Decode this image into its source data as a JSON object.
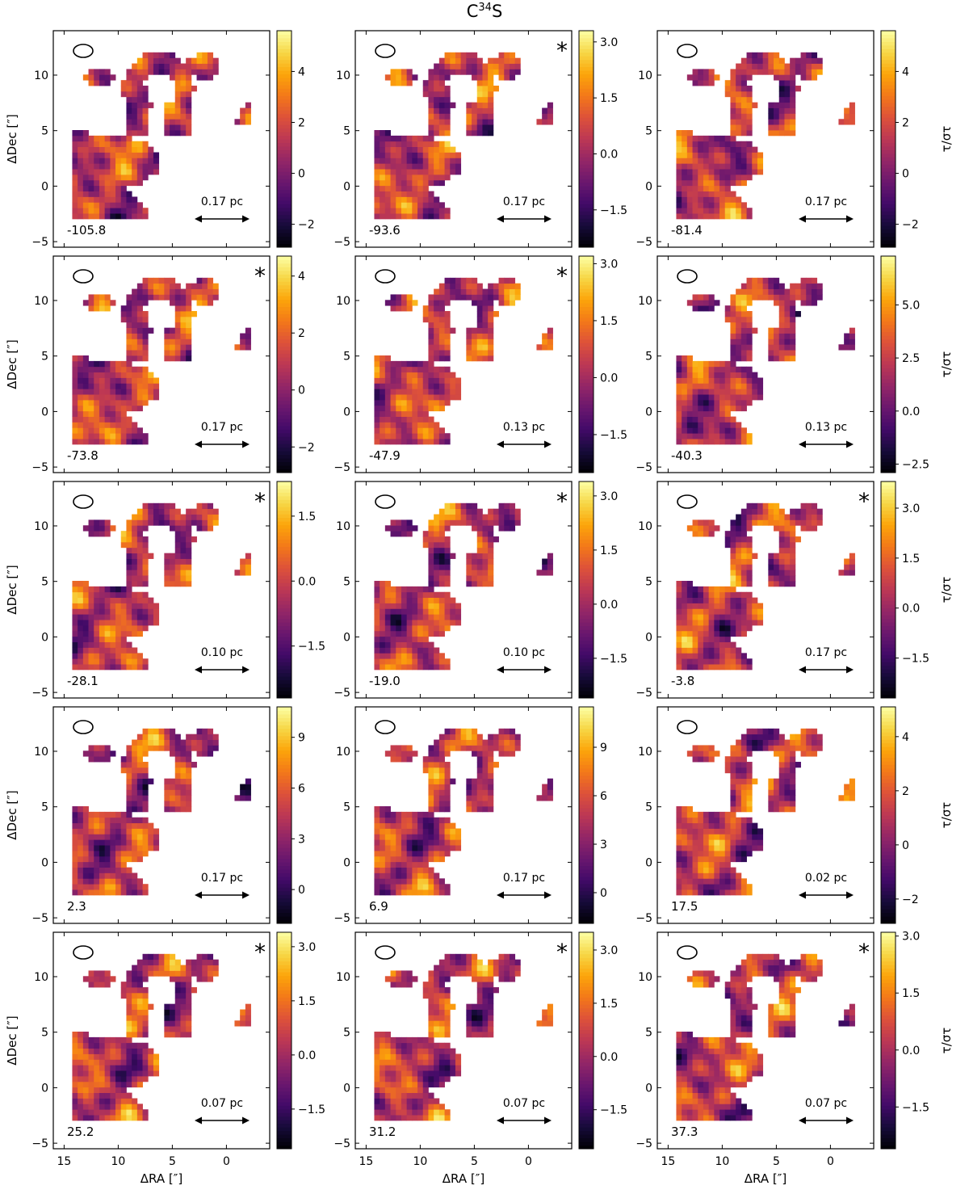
{
  "figure": {
    "title_base": "C",
    "title_sup": "34",
    "title_rest": "S",
    "xlabel": "ΔRA [″]",
    "ylabel": "ΔDec [″]",
    "cbar_label": "τ/στ",
    "colormap": "inferno",
    "missing_value_color": "#ffffff"
  },
  "chart_data": {
    "type": "heatmap",
    "title": "C34S",
    "xlabel": "ΔRA [″]",
    "ylabel": "ΔDec [″]",
    "xlim": [
      16,
      -4
    ],
    "ylim": [
      -5.5,
      14
    ],
    "xticks": [
      15,
      10,
      5,
      0
    ],
    "yticks": [
      -5,
      0,
      5,
      10
    ],
    "grid": false,
    "panels": [
      {
        "velocity": "-105.8",
        "scale": "0.17 pc",
        "asterisk": false,
        "clim": [
          -2.9,
          5.6
        ],
        "cbar_ticks": [
          -2,
          0,
          2,
          4
        ],
        "seed": 11
      },
      {
        "velocity": "-93.6",
        "scale": "0.17 pc",
        "asterisk": true,
        "clim": [
          -2.5,
          3.3
        ],
        "cbar_ticks": [
          -1.5,
          0.0,
          1.5,
          3.0
        ],
        "seed": 23
      },
      {
        "velocity": "-81.4",
        "scale": "0.17 pc",
        "asterisk": false,
        "clim": [
          -2.9,
          5.6
        ],
        "cbar_ticks": [
          -2,
          0,
          2,
          4
        ],
        "seed": 37
      },
      {
        "velocity": "-73.8",
        "scale": "0.17 pc",
        "asterisk": true,
        "clim": [
          -2.9,
          4.7
        ],
        "cbar_ticks": [
          -2,
          0,
          2,
          4
        ],
        "seed": 41
      },
      {
        "velocity": "-47.9",
        "scale": "0.13 pc",
        "asterisk": true,
        "clim": [
          -2.5,
          3.2
        ],
        "cbar_ticks": [
          -1.5,
          0.0,
          1.5,
          3.0
        ],
        "seed": 53
      },
      {
        "velocity": "-40.3",
        "scale": "0.13 pc",
        "asterisk": false,
        "clim": [
          -2.9,
          7.3
        ],
        "cbar_ticks": [
          -2.5,
          0.0,
          2.5,
          5.0
        ],
        "seed": 67
      },
      {
        "velocity": "-28.1",
        "scale": "0.10 pc",
        "asterisk": true,
        "clim": [
          -2.7,
          2.3
        ],
        "cbar_ticks": [
          -1.5,
          0.0,
          1.5
        ],
        "seed": 71
      },
      {
        "velocity": "-19.0",
        "scale": "0.10 pc",
        "asterisk": true,
        "clim": [
          -2.6,
          3.4
        ],
        "cbar_ticks": [
          -1.5,
          0.0,
          1.5,
          3.0
        ],
        "seed": 83
      },
      {
        "velocity": "-3.8",
        "scale": "0.17 pc",
        "asterisk": true,
        "clim": [
          -2.7,
          3.8
        ],
        "cbar_ticks": [
          -1.5,
          0.0,
          1.5,
          3.0
        ],
        "seed": 97
      },
      {
        "velocity": "2.3",
        "scale": "0.17 pc",
        "asterisk": false,
        "clim": [
          -2.0,
          10.8
        ],
        "cbar_ticks": [
          0,
          3,
          6,
          9
        ],
        "seed": 101
      },
      {
        "velocity": "6.9",
        "scale": "0.17 pc",
        "asterisk": false,
        "clim": [
          -1.9,
          11.5
        ],
        "cbar_ticks": [
          0,
          3,
          6,
          9
        ],
        "seed": 113
      },
      {
        "velocity": "17.5",
        "scale": "0.02 pc",
        "asterisk": false,
        "clim": [
          -2.9,
          5.1
        ],
        "cbar_ticks": [
          -2,
          0,
          2,
          4
        ],
        "seed": 127
      },
      {
        "velocity": "25.2",
        "scale": "0.07 pc",
        "asterisk": true,
        "clim": [
          -2.6,
          3.4
        ],
        "cbar_ticks": [
          -1.5,
          0.0,
          1.5,
          3.0
        ],
        "seed": 131
      },
      {
        "velocity": "31.2",
        "scale": "0.07 pc",
        "asterisk": true,
        "clim": [
          -2.6,
          3.5
        ],
        "cbar_ticks": [
          -1.5,
          0.0,
          1.5,
          3.0
        ],
        "seed": 149
      },
      {
        "velocity": "37.3",
        "scale": "0.07 pc",
        "asterisk": true,
        "clim": [
          -2.6,
          3.1
        ],
        "cbar_ticks": [
          -1.5,
          0.0,
          1.5,
          3.0
        ],
        "seed": 157
      }
    ]
  }
}
